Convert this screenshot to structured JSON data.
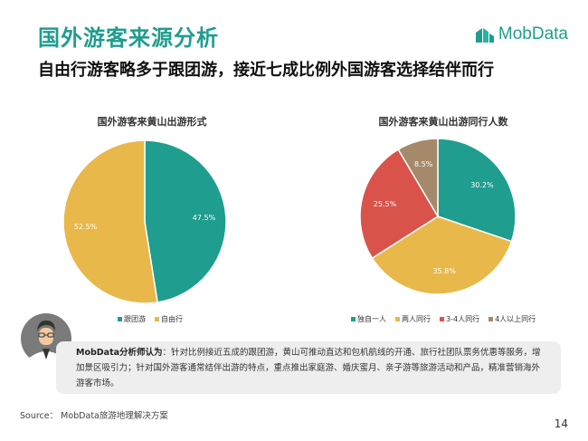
{
  "slide": {
    "title": "国外游客来源分析",
    "brand": "MobData",
    "headline": "自由行游客略多于跟团游，接近七成比例外国游客选择结伴而行",
    "page_number": "14"
  },
  "colors": {
    "teal": "#1f9d8f",
    "gold": "#e8b84a",
    "red": "#d9534a",
    "brown": "#a48a6a"
  },
  "chart_data": [
    {
      "type": "pie",
      "title": "国外游客来黄山出游形式",
      "categories": [
        "跟团游",
        "自由行"
      ],
      "values": [
        47.5,
        52.5
      ],
      "labels": [
        "47.5%",
        "52.5%"
      ],
      "colors": [
        "#1f9d8f",
        "#e8b84a"
      ],
      "legend": "bottom"
    },
    {
      "type": "pie",
      "title": "国外游客来黄山出游同行人数",
      "categories": [
        "独自一人",
        "两人同行",
        "3-4人同行",
        "4人以上同行"
      ],
      "values": [
        30.2,
        35.8,
        25.5,
        8.5
      ],
      "labels": [
        "30.2%",
        "35.8%",
        "25.5%",
        "8.5%"
      ],
      "colors": [
        "#1f9d8f",
        "#e8b84a",
        "#d9534a",
        "#a48a6a"
      ],
      "legend": "bottom"
    }
  ],
  "analyst": {
    "name": "MobData分析师认为",
    "text": "：针对比例接近五成的跟团游，黄山可推动直达和包机航线的开通、旅行社团队票务优惠等服务，增加景区吸引力；针对国外游客通常结伴出游的特点，重点推出家庭游、婚庆蜜月、亲子游等旅游活动和产品，精准营销海外游客市场。"
  },
  "source": "Source： MobData旅游地理解决方案"
}
